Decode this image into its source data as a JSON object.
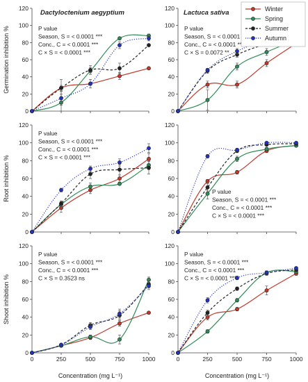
{
  "xlabel": "Concentration (mg L⁻¹)",
  "legend": {
    "position": "top-right",
    "entries": [
      {
        "name": "Winter",
        "color": "#c0392b",
        "style": "solid"
      },
      {
        "name": "Spring",
        "color": "#2e8b57",
        "style": "solid"
      },
      {
        "name": "Summer",
        "color": "#222222",
        "style": "dashed"
      },
      {
        "name": "Autumn",
        "color": "#2233bb",
        "style": "dotted"
      }
    ]
  },
  "chart_data": [
    {
      "type": "line",
      "title": "Dactyloctenium aegyptium",
      "ylabel": "Germination inhibition %",
      "xlabel": "",
      "x": [
        0,
        250,
        500,
        750,
        1000
      ],
      "xlim": [
        0,
        1000
      ],
      "ylim": [
        0,
        120
      ],
      "yticks": [
        0,
        20,
        40,
        60,
        80,
        100,
        120
      ],
      "xticks": [],
      "stats": [
        "P value",
        "Season, S = < 0.0001 ***",
        "Conc., C = < 0.0001 ***",
        "C × S = < 0.0001 ***"
      ],
      "series": [
        {
          "name": "Winter",
          "values": [
            0,
            27,
            32,
            41,
            50
          ],
          "err": [
            0,
            3,
            0,
            4,
            0
          ]
        },
        {
          "name": "Spring",
          "values": [
            0,
            10,
            47,
            85,
            88
          ],
          "err": [
            0,
            10,
            4,
            0,
            2
          ]
        },
        {
          "name": "Summer",
          "values": [
            0,
            27,
            48,
            50,
            77
          ],
          "err": [
            0,
            10,
            5,
            6,
            0
          ]
        },
        {
          "name": "Autumn",
          "values": [
            0,
            15,
            32,
            77,
            85
          ],
          "err": [
            0,
            8,
            5,
            4,
            3
          ]
        }
      ]
    },
    {
      "type": "line",
      "title": "Lactuca sativa",
      "ylabel": "",
      "xlabel": "",
      "x": [
        0,
        250,
        500,
        750,
        1000
      ],
      "xlim": [
        0,
        1000
      ],
      "ylim": [
        0,
        120
      ],
      "yticks": [
        0,
        20,
        40,
        60,
        80,
        100,
        120
      ],
      "xticks": [],
      "stats": [
        "P value",
        "Season, S = < 0.0001 ***",
        "Conc., C = < 0.0001 ***",
        "C × S = 0.0072 **"
      ],
      "series": [
        {
          "name": "Winter",
          "values": [
            0,
            31,
            31,
            56,
            79
          ],
          "err": [
            0,
            4,
            4,
            4,
            0
          ]
        },
        {
          "name": "Spring",
          "values": [
            0,
            13,
            52,
            69,
            83
          ],
          "err": [
            0,
            12,
            4,
            4,
            2
          ]
        },
        {
          "name": "Summer",
          "values": [
            0,
            47,
            66,
            78,
            83
          ],
          "err": [
            0,
            3,
            3,
            2,
            0
          ]
        },
        {
          "name": "Autumn",
          "values": [
            0,
            48,
            70,
            82,
            87
          ],
          "err": [
            0,
            2,
            3,
            2,
            2
          ]
        }
      ]
    },
    {
      "type": "line",
      "title": "",
      "ylabel": "Root inhibition %",
      "xlabel": "",
      "x": [
        0,
        250,
        500,
        750,
        1000
      ],
      "xlim": [
        0,
        1000
      ],
      "ylim": [
        0,
        120
      ],
      "yticks": [
        0,
        20,
        40,
        60,
        80,
        100,
        120
      ],
      "xticks": [],
      "stats": [
        "P value",
        "Season, S = < 0.0001 ***",
        "Conc., C = < 0.0001 ***",
        "C × S = < 0.0001 ***"
      ],
      "series": [
        {
          "name": "Winter",
          "values": [
            0,
            27,
            47,
            60,
            82
          ],
          "err": [
            0,
            5,
            4,
            4,
            6
          ]
        },
        {
          "name": "Spring",
          "values": [
            0,
            31,
            51,
            54,
            75
          ],
          "err": [
            0,
            3,
            4,
            0,
            5
          ]
        },
        {
          "name": "Summer",
          "values": [
            0,
            32,
            65,
            70,
            72
          ],
          "err": [
            0,
            3,
            5,
            6,
            7
          ]
        },
        {
          "name": "Autumn",
          "values": [
            0,
            47,
            71,
            78,
            94
          ],
          "err": [
            0,
            2,
            3,
            4,
            5
          ]
        }
      ]
    },
    {
      "type": "line",
      "title": "",
      "ylabel": "",
      "xlabel": "",
      "x": [
        0,
        250,
        500,
        750,
        1000
      ],
      "xlim": [
        0,
        1000
      ],
      "ylim": [
        0,
        120
      ],
      "yticks": [
        0,
        20,
        40,
        60,
        80,
        100,
        120
      ],
      "xticks": [],
      "stats": [
        "P value",
        "Season, S = < 0.0001 ***",
        "Conc., C = < 0.0001 ***",
        "C × S = < 0.0001 ***"
      ],
      "series": [
        {
          "name": "Winter",
          "values": [
            0,
            57,
            67,
            91,
            97
          ],
          "err": [
            0,
            2,
            2,
            2,
            1
          ]
        },
        {
          "name": "Spring",
          "values": [
            0,
            43,
            82,
            93,
            97
          ],
          "err": [
            0,
            6,
            3,
            2,
            1
          ]
        },
        {
          "name": "Summer",
          "values": [
            0,
            50,
            91,
            98,
            99
          ],
          "err": [
            0,
            4,
            2,
            1,
            1
          ]
        },
        {
          "name": "Autumn",
          "values": [
            0,
            85,
            92,
            100,
            100
          ],
          "err": [
            0,
            2,
            2,
            1,
            1
          ]
        }
      ]
    },
    {
      "type": "line",
      "title": "",
      "ylabel": "Shoot inhibition %",
      "xlabel": "Concentration (mg L⁻¹)",
      "x": [
        0,
        250,
        500,
        750,
        1000
      ],
      "xlim": [
        0,
        1000
      ],
      "ylim": [
        0,
        120
      ],
      "yticks": [
        0,
        20,
        40,
        60,
        80,
        100,
        120
      ],
      "xticks": [
        0,
        250,
        500,
        750,
        1000
      ],
      "stats": [
        "P value",
        "Season, S = < 0.0001 ***",
        "Conc., C = < 0.0001 ***",
        "C × S = 0.3523 ns"
      ],
      "series": [
        {
          "name": "Winter",
          "values": [
            0,
            8,
            17,
            33,
            45
          ],
          "err": [
            0,
            1,
            2,
            3,
            0
          ]
        },
        {
          "name": "Spring",
          "values": [
            0,
            8,
            18,
            15,
            82
          ],
          "err": [
            0,
            1,
            2,
            5,
            3
          ]
        },
        {
          "name": "Summer",
          "values": [
            0,
            9,
            31,
            42,
            77
          ],
          "err": [
            0,
            1,
            3,
            5,
            4
          ]
        },
        {
          "name": "Autumn",
          "values": [
            0,
            9,
            29,
            44,
            75
          ],
          "err": [
            0,
            1,
            3,
            5,
            4
          ]
        }
      ]
    },
    {
      "type": "line",
      "title": "",
      "ylabel": "",
      "xlabel": "Concentration (mg L⁻¹)",
      "x": [
        0,
        250,
        500,
        750,
        1000
      ],
      "xlim": [
        0,
        1000
      ],
      "ylim": [
        0,
        120
      ],
      "yticks": [
        0,
        20,
        40,
        60,
        80,
        100,
        120
      ],
      "xticks": [
        0,
        250,
        500,
        750,
        1000
      ],
      "stats": [
        "P value",
        "Season, S = < 0.0001 ***",
        "Conc., C = < 0.0001 ***",
        "C × S = < 0.0001 ***"
      ],
      "series": [
        {
          "name": "Winter",
          "values": [
            0,
            40,
            49,
            70,
            89
          ],
          "err": [
            0,
            3,
            2,
            5,
            2
          ]
        },
        {
          "name": "Spring",
          "values": [
            0,
            24,
            59,
            90,
            91
          ],
          "err": [
            0,
            2,
            2,
            2,
            1
          ]
        },
        {
          "name": "Summer",
          "values": [
            0,
            45,
            72,
            89,
            93
          ],
          "err": [
            0,
            3,
            2,
            2,
            1
          ]
        },
        {
          "name": "Autumn",
          "values": [
            0,
            59,
            84,
            90,
            95
          ],
          "err": [
            0,
            3,
            2,
            2,
            1
          ]
        }
      ]
    }
  ]
}
